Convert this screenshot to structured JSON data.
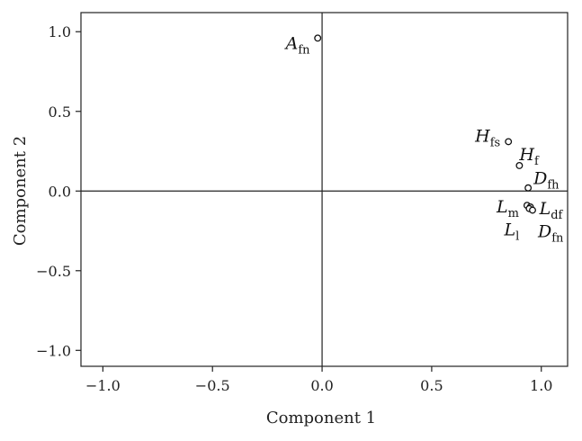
{
  "chart_data": {
    "type": "scatter",
    "xlabel": "Component 1",
    "ylabel": "Component 2",
    "xlim": [
      -1.1,
      1.12
    ],
    "ylim": [
      -1.1,
      1.12
    ],
    "x_ticks": [
      -1.0,
      -0.5,
      0.0,
      0.5,
      1.0
    ],
    "x_tick_labels": [
      "−1.0",
      "−0.5",
      "0.0",
      "0.5",
      "1.0"
    ],
    "y_ticks": [
      1.0,
      0.5,
      0.0,
      -0.5,
      -1.0
    ],
    "y_tick_labels": [
      "1.0",
      "0.5",
      "0.0",
      "−0.5",
      "−1.0"
    ],
    "reference_lines": {
      "x": 0,
      "y": 0
    },
    "grid": false,
    "points": [
      {
        "base": "A",
        "sub": "fn",
        "x": -0.02,
        "y": 0.96
      },
      {
        "base": "H",
        "sub": "fs",
        "x": 0.85,
        "y": 0.31
      },
      {
        "base": "H",
        "sub": "f",
        "x": 0.9,
        "y": 0.16
      },
      {
        "base": "D",
        "sub": "fh",
        "x": 0.94,
        "y": 0.02
      },
      {
        "base": "L",
        "sub": "m",
        "x": 0.935,
        "y": -0.09
      },
      {
        "base": "L",
        "sub": "df",
        "x": 0.95,
        "y": -0.1
      },
      {
        "base": "L",
        "sub": "l",
        "x": 0.945,
        "y": -0.11
      },
      {
        "base": "D",
        "sub": "fn",
        "x": 0.96,
        "y": -0.12
      }
    ]
  }
}
